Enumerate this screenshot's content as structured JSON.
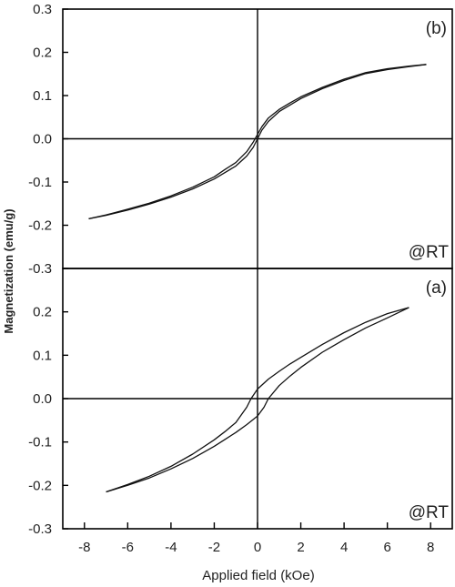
{
  "chart_data": [
    {
      "panel": "b",
      "type": "line",
      "panel_label": "(b)",
      "annotation": "@RT",
      "xlim": [
        -9,
        9
      ],
      "ylim": [
        -0.3,
        0.3
      ],
      "yticks": [
        "-0.3",
        "-0.2",
        "-0.1",
        "0.0",
        "0.1",
        "0.2",
        "0.3"
      ],
      "yticks_values": [
        -0.3,
        -0.2,
        -0.1,
        0.0,
        0.1,
        0.2,
        0.3
      ],
      "series": [
        {
          "x": [
            -7.8,
            -7.0,
            -6.0,
            -5.0,
            -4.0,
            -3.0,
            -2.0,
            -1.5,
            -1.0,
            -0.5,
            -0.2,
            0.0,
            0.2,
            0.5,
            1.0,
            1.5,
            2.0,
            3.0,
            4.0,
            5.0,
            6.0,
            7.0,
            7.8
          ],
          "y": [
            -0.185,
            -0.177,
            -0.165,
            -0.151,
            -0.135,
            -0.116,
            -0.093,
            -0.078,
            -0.063,
            -0.04,
            -0.02,
            0.0,
            0.02,
            0.04,
            0.063,
            0.078,
            0.093,
            0.116,
            0.135,
            0.151,
            0.16,
            0.167,
            0.172
          ]
        },
        {
          "x": [
            7.8,
            7.0,
            6.0,
            5.0,
            4.0,
            3.0,
            2.0,
            1.5,
            1.0,
            0.5,
            0.2,
            0.0,
            -0.2,
            -0.5,
            -1.0,
            -1.5,
            -2.0,
            -3.0,
            -4.0,
            -5.0,
            -6.0,
            -7.0,
            -7.8
          ],
          "y": [
            0.172,
            0.168,
            0.162,
            0.153,
            0.138,
            0.119,
            0.097,
            0.083,
            0.068,
            0.048,
            0.028,
            0.01,
            -0.008,
            -0.03,
            -0.055,
            -0.071,
            -0.088,
            -0.112,
            -0.132,
            -0.149,
            -0.163,
            -0.176,
            -0.185
          ]
        }
      ]
    },
    {
      "panel": "a",
      "type": "line",
      "panel_label": "(a)",
      "annotation": "@RT",
      "xlim": [
        -9,
        9
      ],
      "ylim": [
        -0.3,
        0.3
      ],
      "yticks": [
        "-0.3",
        "-0.2",
        "-0.1",
        "0.0",
        "0.1",
        "0.2"
      ],
      "yticks_values": [
        -0.3,
        -0.2,
        -0.1,
        0.0,
        0.1,
        0.2
      ],
      "series": [
        {
          "x": [
            -7.0,
            -6.0,
            -5.0,
            -4.0,
            -3.0,
            -2.0,
            -1.5,
            -1.0,
            -0.5,
            0.0,
            0.3,
            0.5,
            1.0,
            1.5,
            2.0,
            3.0,
            4.0,
            5.0,
            6.0,
            7.0
          ],
          "y": [
            -0.215,
            -0.2,
            -0.183,
            -0.162,
            -0.138,
            -0.11,
            -0.094,
            -0.078,
            -0.06,
            -0.04,
            -0.02,
            0.0,
            0.03,
            0.052,
            0.072,
            0.107,
            0.136,
            0.163,
            0.186,
            0.21
          ]
        },
        {
          "x": [
            7.0,
            6.0,
            5.0,
            4.0,
            3.0,
            2.0,
            1.5,
            1.0,
            0.5,
            0.0,
            -0.3,
            -0.5,
            -1.0,
            -1.5,
            -2.0,
            -3.0,
            -4.0,
            -5.0,
            -6.0,
            -7.0
          ],
          "y": [
            0.21,
            0.196,
            0.176,
            0.152,
            0.125,
            0.095,
            0.08,
            0.063,
            0.045,
            0.022,
            0.0,
            -0.02,
            -0.055,
            -0.076,
            -0.095,
            -0.128,
            -0.156,
            -0.179,
            -0.198,
            -0.215
          ]
        }
      ]
    }
  ],
  "xaxis": {
    "label": "Applied field (kOe)",
    "ticks": [
      "-8",
      "-6",
      "-4",
      "-2",
      "0",
      "2",
      "4",
      "6",
      "8"
    ],
    "tick_values": [
      -8,
      -6,
      -4,
      -2,
      0,
      2,
      4,
      6,
      8
    ]
  },
  "yaxis": {
    "label": "Magnetization (emu/g)"
  }
}
